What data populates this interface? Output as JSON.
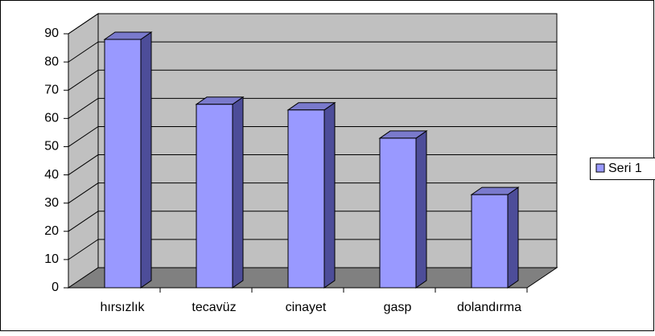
{
  "chart_data": {
    "type": "bar3d",
    "categories": [
      "hırsızlık",
      "tecavüz",
      "cinayet",
      "gasp",
      "dolandırma"
    ],
    "series": [
      {
        "name": "Seri 1",
        "color": "#9999ff",
        "values": [
          88,
          65,
          63,
          53,
          33
        ]
      }
    ],
    "ylim": [
      0,
      90
    ],
    "yticks": [
      0,
      10,
      20,
      30,
      40,
      50,
      60,
      70,
      80,
      90
    ],
    "grid": true,
    "legend": "right"
  }
}
